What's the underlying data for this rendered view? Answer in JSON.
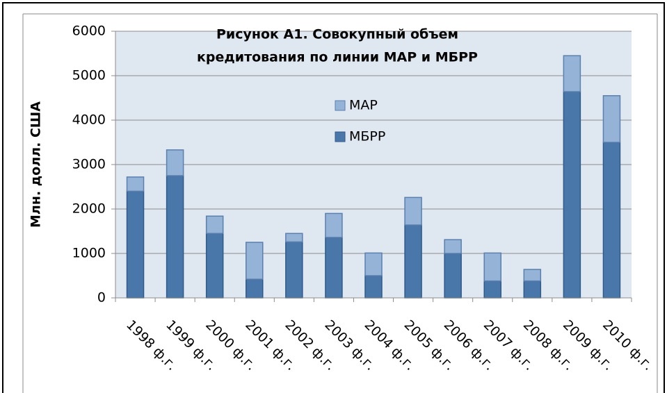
{
  "chart_data": {
    "type": "bar",
    "stacked": true,
    "title": "Рисунок А1. Совокупный объем",
    "subtitle": "кредитования по линии МАР и МБРР",
    "y_label": "Млн. долл. США",
    "categories": [
      "1998 ф.г.",
      "1999 ф.г.",
      "2000 ф.г.",
      "2001 ф.г.",
      "2002 ф.г.",
      "2003 ф.г.",
      "2004 ф.г.",
      "2005 ф.г.",
      "2006 ф.г.",
      "2007 ф.г.",
      "2008 ф.г.",
      "2009 ф.г.",
      "2010 ф.г."
    ],
    "series": [
      {
        "name": "МБРР",
        "color": "#4a77aa",
        "values": [
          2400,
          2750,
          1450,
          420,
          1260,
          1360,
          500,
          1640,
          1000,
          380,
          380,
          4640,
          3500
        ]
      },
      {
        "name": "МАР",
        "color": "#95b3d7",
        "values": [
          320,
          580,
          390,
          830,
          190,
          540,
          510,
          620,
          310,
          630,
          260,
          810,
          1050
        ]
      }
    ],
    "ylim": [
      0,
      6000
    ],
    "yticks": [
      0,
      1000,
      2000,
      3000,
      4000,
      5000,
      6000
    ],
    "grid": true
  }
}
